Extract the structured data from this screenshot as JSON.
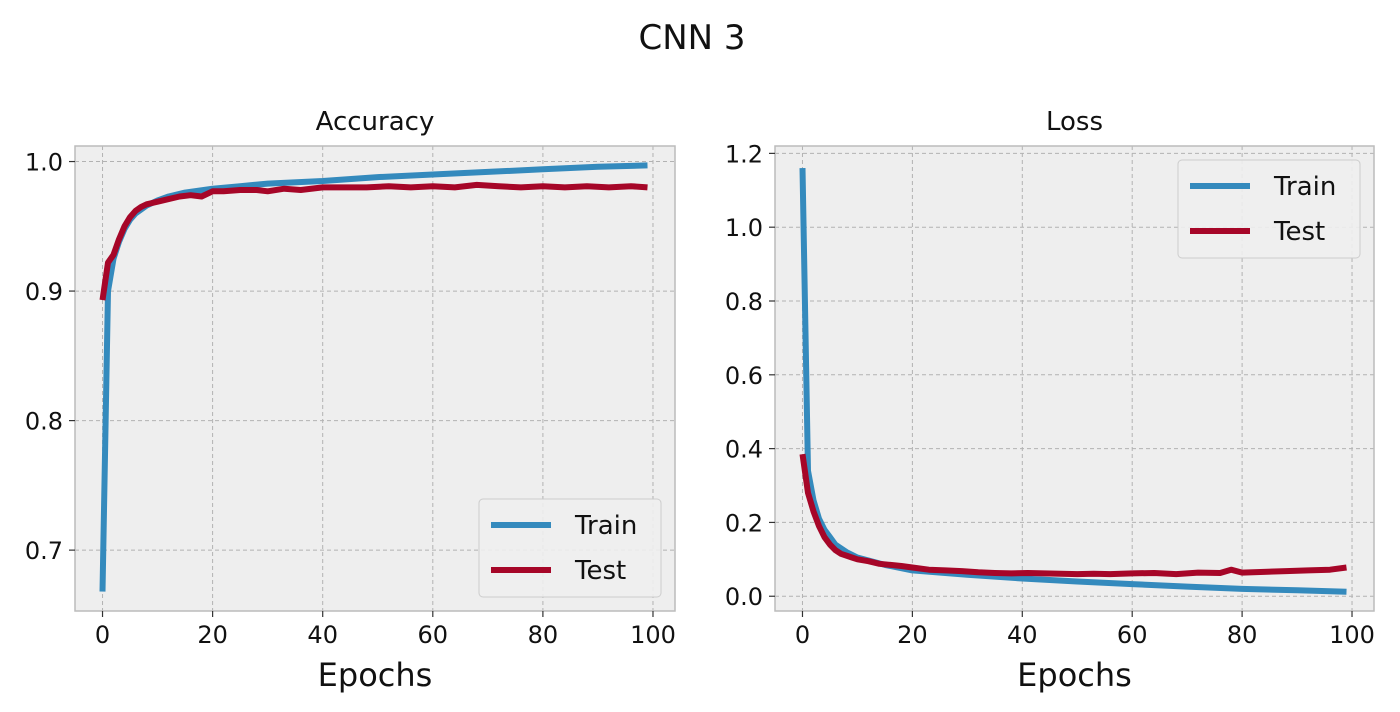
{
  "figure": {
    "title": "CNN 3"
  },
  "colors": {
    "train": "#348ABD",
    "test": "#A60628",
    "plot_bg": "#EEEEEE",
    "grid": "#B2B2B2",
    "spine": "#BCBCBC"
  },
  "chart_data": [
    {
      "type": "line",
      "title": "Accuracy",
      "xlabel": "Epochs",
      "ylabel": "",
      "xlim": [
        -5,
        104
      ],
      "ylim": [
        0.653,
        1.012
      ],
      "xticks": [
        0,
        20,
        40,
        60,
        80,
        100
      ],
      "yticks": [
        0.7,
        0.8,
        0.9,
        1.0
      ],
      "ytick_labels": [
        "0.7",
        "0.8",
        "0.9",
        "1.0"
      ],
      "grid": true,
      "legend_position": "bottom-right",
      "series": [
        {
          "name": "Train",
          "x": [
            0,
            1,
            2,
            3,
            4,
            5,
            6,
            8,
            10,
            12,
            15,
            20,
            25,
            30,
            40,
            50,
            60,
            70,
            80,
            90,
            99
          ],
          "y": [
            0.668,
            0.9,
            0.925,
            0.938,
            0.948,
            0.955,
            0.96,
            0.966,
            0.97,
            0.973,
            0.976,
            0.979,
            0.981,
            0.983,
            0.985,
            0.988,
            0.99,
            0.992,
            0.994,
            0.996,
            0.997
          ]
        },
        {
          "name": "Test",
          "x": [
            0,
            1,
            2,
            3,
            4,
            5,
            6,
            7,
            8,
            9,
            10,
            12,
            14,
            16,
            18,
            20,
            22,
            25,
            28,
            30,
            33,
            36,
            40,
            44,
            48,
            52,
            56,
            60,
            64,
            68,
            72,
            76,
            80,
            84,
            88,
            92,
            96,
            99
          ],
          "y": [
            0.893,
            0.922,
            0.928,
            0.94,
            0.95,
            0.957,
            0.962,
            0.965,
            0.967,
            0.968,
            0.969,
            0.971,
            0.973,
            0.974,
            0.973,
            0.977,
            0.977,
            0.978,
            0.978,
            0.977,
            0.979,
            0.978,
            0.98,
            0.98,
            0.98,
            0.981,
            0.98,
            0.981,
            0.98,
            0.982,
            0.981,
            0.98,
            0.981,
            0.98,
            0.981,
            0.98,
            0.981,
            0.98
          ]
        }
      ]
    },
    {
      "type": "line",
      "title": "Loss",
      "xlabel": "Epochs",
      "ylabel": "",
      "xlim": [
        -5,
        104
      ],
      "ylim": [
        -0.04,
        1.22
      ],
      "xticks": [
        0,
        20,
        40,
        60,
        80,
        100
      ],
      "yticks": [
        0.0,
        0.2,
        0.4,
        0.6,
        0.8,
        1.0,
        1.2
      ],
      "ytick_labels": [
        "0.0",
        "0.2",
        "0.4",
        "0.6",
        "0.8",
        "1.0",
        "1.2"
      ],
      "grid": true,
      "legend_position": "top-right",
      "series": [
        {
          "name": "Train",
          "x": [
            0,
            1,
            2,
            3,
            4,
            5,
            6,
            8,
            10,
            15,
            20,
            30,
            40,
            50,
            60,
            70,
            80,
            90,
            99
          ],
          "y": [
            1.16,
            0.34,
            0.26,
            0.21,
            0.18,
            0.16,
            0.14,
            0.12,
            0.105,
            0.085,
            0.07,
            0.058,
            0.048,
            0.04,
            0.033,
            0.026,
            0.02,
            0.016,
            0.012
          ]
        },
        {
          "name": "Test",
          "x": [
            0,
            1,
            2,
            3,
            4,
            5,
            6,
            7,
            8,
            9,
            10,
            12,
            14,
            16,
            18,
            20,
            23,
            26,
            29,
            32,
            35,
            38,
            41,
            44,
            47,
            50,
            53,
            56,
            60,
            64,
            68,
            72,
            76,
            78,
            80,
            84,
            88,
            92,
            96,
            99
          ],
          "y": [
            0.385,
            0.28,
            0.23,
            0.19,
            0.16,
            0.14,
            0.125,
            0.115,
            0.11,
            0.105,
            0.1,
            0.095,
            0.088,
            0.085,
            0.082,
            0.078,
            0.072,
            0.07,
            0.068,
            0.065,
            0.063,
            0.062,
            0.063,
            0.062,
            0.061,
            0.06,
            0.061,
            0.06,
            0.062,
            0.063,
            0.06,
            0.064,
            0.063,
            0.072,
            0.064,
            0.066,
            0.068,
            0.07,
            0.072,
            0.078
          ]
        }
      ]
    }
  ]
}
